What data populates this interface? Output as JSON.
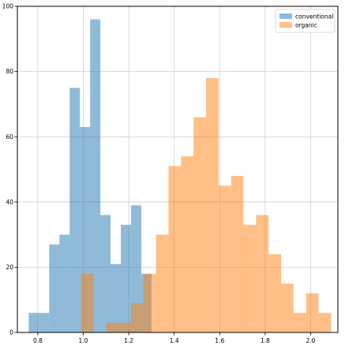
{
  "chart_data": {
    "type": "histogram",
    "title": "",
    "xlabel": "",
    "ylabel": "",
    "xlim": [
      0.71,
      2.12
    ],
    "ylim": [
      0,
      100
    ],
    "xticks": [
      0.8,
      1.0,
      1.2,
      1.4,
      1.6,
      1.8,
      2.0
    ],
    "xtick_labels": [
      "0.8",
      "1.0",
      "1.2",
      "1.4",
      "1.6",
      "1.8",
      "2.0"
    ],
    "yticks": [
      0,
      20,
      40,
      60,
      80,
      100
    ],
    "ytick_labels": [
      "0",
      "20",
      "40",
      "60",
      "80",
      "100"
    ],
    "grid": true,
    "legend_position": "top-right",
    "series": [
      {
        "name": "conventional",
        "color": "#1f77b4",
        "alpha": 0.5,
        "bins": [
          {
            "x0": 0.76,
            "x1": 0.805,
            "count": 6
          },
          {
            "x0": 0.805,
            "x1": 0.85,
            "count": 6
          },
          {
            "x0": 0.85,
            "x1": 0.895,
            "count": 27
          },
          {
            "x0": 0.895,
            "x1": 0.94,
            "count": 30
          },
          {
            "x0": 0.94,
            "x1": 0.985,
            "count": 75
          },
          {
            "x0": 0.985,
            "x1": 1.03,
            "count": 63
          },
          {
            "x0": 1.03,
            "x1": 1.075,
            "count": 96
          },
          {
            "x0": 1.075,
            "x1": 1.12,
            "count": 36
          },
          {
            "x0": 1.12,
            "x1": 1.165,
            "count": 21
          },
          {
            "x0": 1.165,
            "x1": 1.21,
            "count": 33
          },
          {
            "x0": 1.21,
            "x1": 1.255,
            "count": 39
          },
          {
            "x0": 1.255,
            "x1": 1.3,
            "count": 18
          }
        ]
      },
      {
        "name": "organic",
        "color": "#ff7f0e",
        "alpha": 0.5,
        "bins": [
          {
            "x0": 0.99,
            "x1": 1.045,
            "count": 18
          },
          {
            "x0": 1.045,
            "x1": 1.1,
            "count": 0
          },
          {
            "x0": 1.1,
            "x1": 1.155,
            "count": 3
          },
          {
            "x0": 1.155,
            "x1": 1.21,
            "count": 3
          },
          {
            "x0": 1.21,
            "x1": 1.265,
            "count": 9
          },
          {
            "x0": 1.265,
            "x1": 1.32,
            "count": 18
          },
          {
            "x0": 1.32,
            "x1": 1.375,
            "count": 30
          },
          {
            "x0": 1.375,
            "x1": 1.43,
            "count": 51
          },
          {
            "x0": 1.43,
            "x1": 1.485,
            "count": 54
          },
          {
            "x0": 1.485,
            "x1": 1.54,
            "count": 66
          },
          {
            "x0": 1.54,
            "x1": 1.595,
            "count": 78
          },
          {
            "x0": 1.595,
            "x1": 1.65,
            "count": 45
          },
          {
            "x0": 1.65,
            "x1": 1.705,
            "count": 48
          },
          {
            "x0": 1.705,
            "x1": 1.76,
            "count": 33
          },
          {
            "x0": 1.76,
            "x1": 1.815,
            "count": 36
          },
          {
            "x0": 1.815,
            "x1": 1.87,
            "count": 24
          },
          {
            "x0": 1.87,
            "x1": 1.925,
            "count": 15
          },
          {
            "x0": 1.925,
            "x1": 1.98,
            "count": 6
          },
          {
            "x0": 1.98,
            "x1": 2.035,
            "count": 12
          },
          {
            "x0": 2.035,
            "x1": 2.09,
            "count": 6
          }
        ]
      }
    ]
  }
}
